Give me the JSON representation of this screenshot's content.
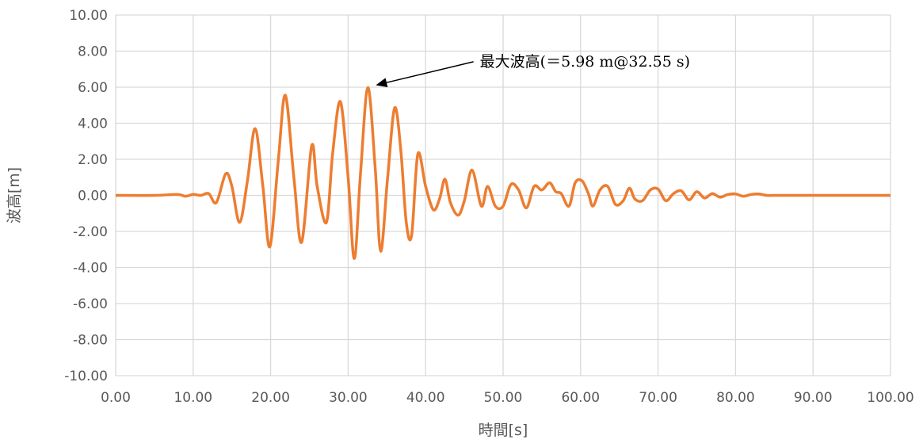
{
  "chart_data": {
    "type": "line",
    "title": "",
    "xlabel": "時間[s]",
    "ylabel": "波高[m]",
    "xlim": [
      0,
      100
    ],
    "ylim": [
      -10,
      10
    ],
    "x_ticks": [
      0,
      10,
      20,
      30,
      40,
      50,
      60,
      70,
      80,
      90,
      100
    ],
    "y_ticks": [
      -10,
      -8,
      -6,
      -4,
      -2,
      0,
      2,
      4,
      6,
      8,
      10
    ],
    "x_tick_labels": [
      "0.00",
      "10.00",
      "20.00",
      "30.00",
      "40.00",
      "50.00",
      "60.00",
      "70.00",
      "80.00",
      "90.00",
      "100.00"
    ],
    "y_tick_labels": [
      "-10.00",
      "-8.00",
      "-6.00",
      "-4.00",
      "-2.00",
      "0.00",
      "2.00",
      "4.00",
      "6.00",
      "8.00",
      "10.00"
    ],
    "grid": true,
    "legend": "none",
    "series": [
      {
        "color": "#ED7D31",
        "x": [
          0,
          5,
          8,
          9,
          10,
          11,
          12,
          13,
          14.2,
          15,
          16,
          17,
          18,
          19,
          19.9,
          21,
          21.9,
          23,
          24,
          25.3,
          26,
          27.2,
          28,
          29,
          30,
          30.8,
          31.6,
          32.55,
          33.5,
          34.2,
          35.1,
          36,
          36.8,
          37.5,
          38.2,
          39,
          40,
          41,
          41.8,
          42.5,
          43.2,
          44.2,
          45,
          46,
          47.2,
          48,
          49,
          50,
          51,
          52,
          53,
          54,
          55,
          56,
          56.8,
          57.5,
          58.5,
          59.3,
          60.2,
          61,
          61.6,
          62.5,
          63.5,
          64.5,
          65.5,
          66.3,
          67,
          68,
          69,
          70,
          71,
          72,
          73,
          74,
          75,
          76,
          77,
          78,
          79,
          80,
          81,
          82,
          83,
          84,
          85,
          90,
          95,
          100
        ],
        "y": [
          0,
          0,
          0.05,
          -0.05,
          0.05,
          0,
          0.1,
          -0.4,
          1.2,
          0.5,
          -1.5,
          0.8,
          3.7,
          0.5,
          -2.85,
          2,
          5.55,
          1,
          -2.6,
          2.75,
          0.5,
          -1.5,
          2.3,
          5.2,
          1,
          -3.5,
          1.2,
          5.98,
          1.5,
          -3.1,
          1,
          4.85,
          2.5,
          -1.5,
          -2.2,
          2.3,
          0.5,
          -0.8,
          -0.2,
          0.9,
          -0.4,
          -1.1,
          -0.3,
          1.4,
          -0.6,
          0.5,
          -0.6,
          -0.6,
          0.6,
          0.3,
          -0.7,
          0.5,
          0.3,
          0.7,
          0.2,
          0.1,
          -0.6,
          0.7,
          0.8,
          0.1,
          -0.6,
          0.3,
          0.5,
          -0.5,
          -0.3,
          0.4,
          -0.2,
          -0.3,
          0.3,
          0.35,
          -0.3,
          0.1,
          0.25,
          -0.25,
          0.2,
          -0.15,
          0.1,
          -0.1,
          0.05,
          0.08,
          -0.05,
          0.05,
          0.08,
          0,
          0,
          0,
          0,
          0
        ]
      }
    ],
    "annotation": {
      "text": "最大波高(＝5.98 m@32.55 s)",
      "point": [
        32.55,
        5.98
      ],
      "text_anchor": [
        47,
        7.15
      ]
    }
  }
}
